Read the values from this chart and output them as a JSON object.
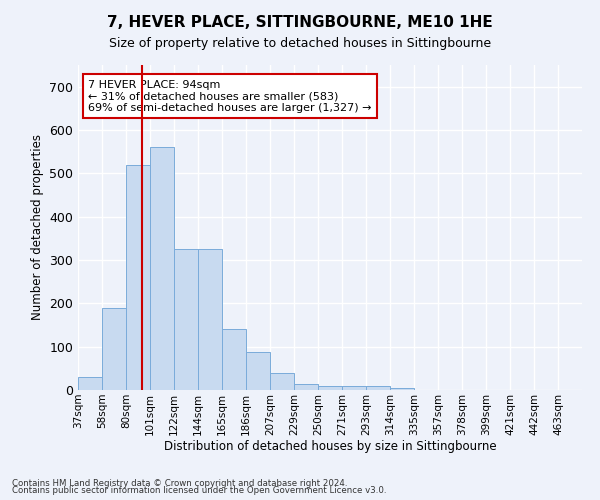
{
  "title": "7, HEVER PLACE, SITTINGBOURNE, ME10 1HE",
  "subtitle": "Size of property relative to detached houses in Sittingbourne",
  "xlabel": "Distribution of detached houses by size in Sittingbourne",
  "ylabel": "Number of detached properties",
  "bar_color": "#c8daf0",
  "bar_edge_color": "#7aabda",
  "categories": [
    "37sqm",
    "58sqm",
    "80sqm",
    "101sqm",
    "122sqm",
    "144sqm",
    "165sqm",
    "186sqm",
    "207sqm",
    "229sqm",
    "250sqm",
    "271sqm",
    "293sqm",
    "314sqm",
    "335sqm",
    "357sqm",
    "378sqm",
    "399sqm",
    "421sqm",
    "442sqm",
    "463sqm"
  ],
  "values": [
    30,
    190,
    520,
    560,
    325,
    325,
    140,
    87,
    40,
    13,
    10,
    10,
    10,
    5,
    0,
    0,
    0,
    0,
    0,
    0,
    0
  ],
  "ylim": [
    0,
    750
  ],
  "yticks": [
    0,
    100,
    200,
    300,
    400,
    500,
    600,
    700
  ],
  "vline_bin": 2.67,
  "annotation_text": "7 HEVER PLACE: 94sqm\n← 31% of detached houses are smaller (583)\n69% of semi-detached houses are larger (1,327) →",
  "annotation_box_color": "#ffffff",
  "annotation_box_edge": "#cc0000",
  "vline_color": "#cc0000",
  "footnote1": "Contains HM Land Registry data © Crown copyright and database right 2024.",
  "footnote2": "Contains public sector information licensed under the Open Government Licence v3.0.",
  "background_color": "#eef2fa",
  "grid_color": "#ffffff"
}
